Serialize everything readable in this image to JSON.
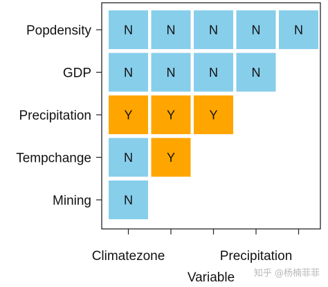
{
  "chart_data": {
    "type": "heatmap",
    "xlabel": "Variable",
    "x_tick_labels": [
      "Climatezone",
      "Precipitation"
    ],
    "rows": [
      "Popdensity",
      "GDP",
      "Precipitation",
      "Tempchange",
      "Mining"
    ],
    "cells": [
      [
        "N",
        "N",
        "N",
        "N",
        "N"
      ],
      [
        "N",
        "N",
        "N",
        "N",
        ""
      ],
      [
        "Y",
        "Y",
        "Y",
        "",
        ""
      ],
      [
        "N",
        "Y",
        "",
        "",
        ""
      ],
      [
        "N",
        "",
        "",
        "",
        ""
      ]
    ],
    "colors": {
      "N": "#87ceeb",
      "Y": "#ffa500"
    }
  },
  "watermark": "知乎 @杨楠菲菲"
}
